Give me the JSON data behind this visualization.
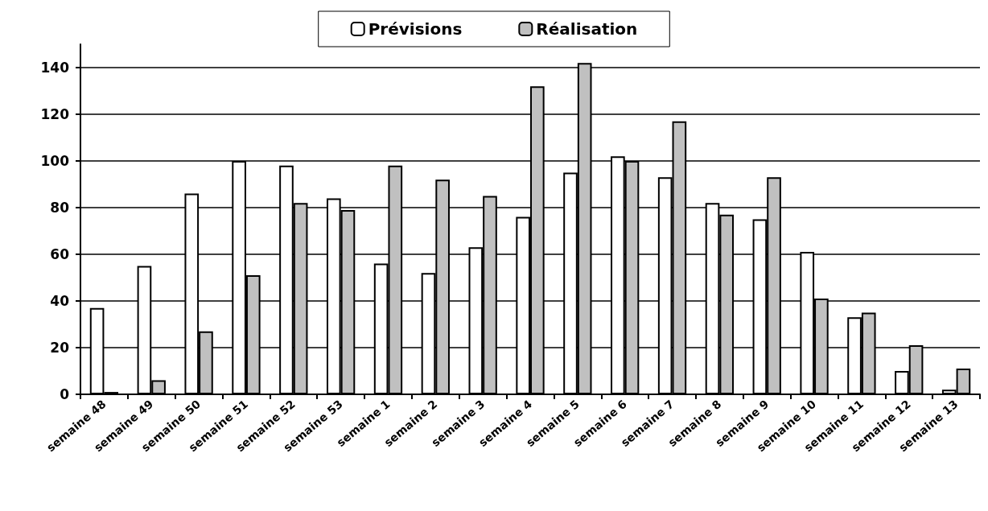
{
  "chart_data": {
    "type": "bar",
    "categories": [
      "semaine 48",
      "semaine 49",
      "semaine 50",
      "semaine 51",
      "semaine 52",
      "semaine 53",
      "semaine 1",
      "semaine 2",
      "semaine 3",
      "semaine 4",
      "semaine 5",
      "semaine 6",
      "semaine 7",
      "semaine 8",
      "semaine 9",
      "semaine 10",
      "semaine 11",
      "semaine 12",
      "semaine 13"
    ],
    "series": [
      {
        "name": "Prévisions",
        "color": "#ffffff",
        "values": [
          37,
          55,
          86,
          100,
          98,
          84,
          56,
          52,
          63,
          76,
          95,
          102,
          93,
          82,
          75,
          61,
          33,
          10,
          2
        ]
      },
      {
        "name": "Réalisation",
        "color": "#c0c0c0",
        "values": [
          1,
          6,
          27,
          51,
          82,
          79,
          98,
          92,
          85,
          132,
          142,
          100,
          117,
          77,
          93,
          41,
          35,
          21,
          11
        ]
      }
    ],
    "ylim": [
      0,
      150
    ],
    "yticks": [
      0,
      20,
      40,
      60,
      80,
      100,
      120,
      140
    ],
    "grid": "y",
    "legend": "top"
  }
}
